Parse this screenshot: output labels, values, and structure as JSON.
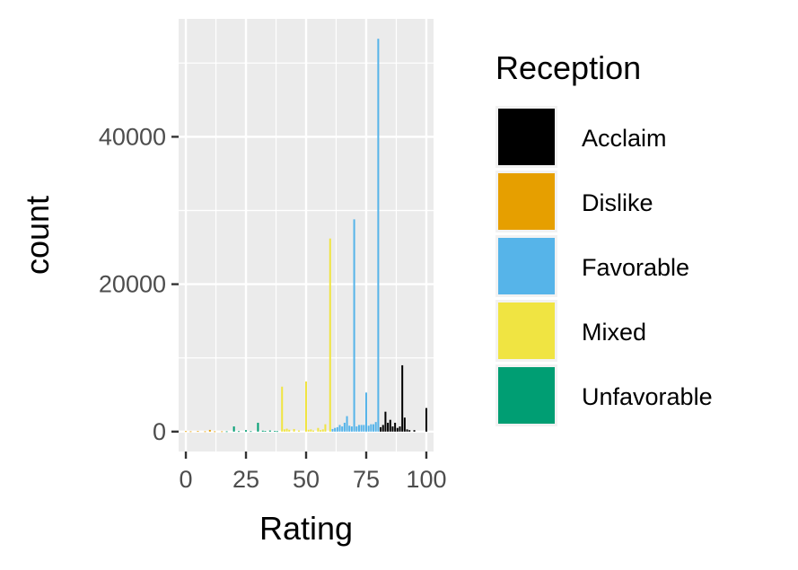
{
  "colors": {
    "panel_bg": "#EBEBEB",
    "grid_major": "#FFFFFF",
    "axis_text": "#4D4D4D",
    "axis_tick": "#333333"
  },
  "chart_data": {
    "type": "bar",
    "subtype": "histogram",
    "title": "",
    "xlabel": "Rating",
    "ylabel": "count",
    "xlim": [
      -3,
      103
    ],
    "ylim": [
      -2700,
      56000
    ],
    "xticks": [
      0,
      25,
      50,
      75,
      100
    ],
    "yticks": [
      0,
      20000,
      40000
    ],
    "grid": true,
    "legend": {
      "title": "Reception",
      "position": "right",
      "items": [
        {
          "label": "Acclaim",
          "color": "#000000"
        },
        {
          "label": "Dislike",
          "color": "#E69F00"
        },
        {
          "label": "Favorable",
          "color": "#56B4E9"
        },
        {
          "label": "Mixed",
          "color": "#F0E442"
        },
        {
          "label": "Unfavorable",
          "color": "#009E73"
        }
      ]
    },
    "bin_width": 1,
    "series": [
      {
        "name": "Dislike",
        "color": "#E69F00",
        "x": [
          0,
          2,
          5,
          8,
          10,
          12,
          15
        ],
        "values": [
          60,
          40,
          70,
          40,
          230,
          40,
          40
        ]
      },
      {
        "name": "Unfavorable",
        "color": "#009E73",
        "x": [
          17,
          20,
          22,
          25,
          27,
          30,
          32,
          33,
          35,
          37,
          38
        ],
        "values": [
          40,
          700,
          60,
          200,
          60,
          1200,
          130,
          80,
          150,
          80,
          60
        ]
      },
      {
        "name": "Mixed",
        "color": "#F0E442",
        "x": [
          40,
          41,
          42,
          43,
          45,
          47,
          50,
          51,
          52,
          53,
          55,
          56,
          57,
          58,
          60
        ],
        "values": [
          6100,
          300,
          400,
          250,
          350,
          150,
          6800,
          250,
          300,
          150,
          500,
          200,
          300,
          1000,
          26200
        ]
      },
      {
        "name": "Favorable",
        "color": "#56B4E9",
        "x": [
          61,
          62,
          63,
          64,
          65,
          66,
          67,
          68,
          69,
          70,
          71,
          72,
          73,
          74,
          75,
          76,
          77,
          78,
          79,
          80
        ],
        "values": [
          350,
          500,
          600,
          900,
          700,
          1200,
          2100,
          800,
          700,
          28800,
          700,
          900,
          900,
          900,
          5300,
          800,
          1000,
          1000,
          1300,
          53300
        ]
      },
      {
        "name": "Acclaim",
        "color": "#000000",
        "x": [
          81,
          82,
          83,
          84,
          85,
          86,
          87,
          88,
          89,
          90,
          91,
          92,
          93,
          95,
          100
        ],
        "values": [
          600,
          900,
          2700,
          1200,
          1600,
          700,
          1200,
          500,
          700,
          9000,
          1900,
          300,
          200,
          200,
          3200
        ]
      }
    ]
  }
}
